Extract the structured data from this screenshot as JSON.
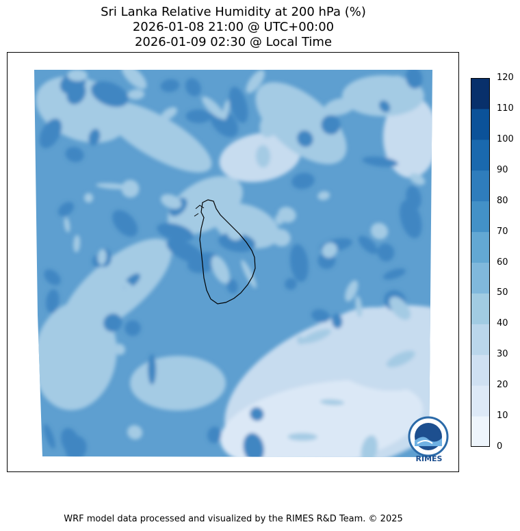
{
  "title": {
    "line1": "Sri Lanka Relative Humidity at 200 hPa (%)",
    "line2": "2026-01-08 21:00 @ UTC+00:00",
    "line3": "2026-01-09 02:30 @ Local Time"
  },
  "colorbar": {
    "ticks": [
      "0",
      "10",
      "20",
      "30",
      "40",
      "50",
      "60",
      "70",
      "80",
      "90",
      "100",
      "110",
      "120"
    ],
    "colors": [
      "#eef5fc",
      "#dde9f7",
      "#cfe0f2",
      "#bad6eb",
      "#a1cbe2",
      "#80b8dc",
      "#63a8d3",
      "#4391c7",
      "#2f7dbc",
      "#1a69ae",
      "#0b5299",
      "#08306b"
    ]
  },
  "field_colors": {
    "background": "#5e9fd0",
    "light": "#a4cbe4",
    "lighter": "#c7dcef",
    "lightest": "#dbe8f6",
    "dark": "#3f86c2"
  },
  "logo": {
    "text": "RIMES"
  },
  "footer": "WRF model data processed and visualized by the RIMES R&D Team. © 2025"
}
